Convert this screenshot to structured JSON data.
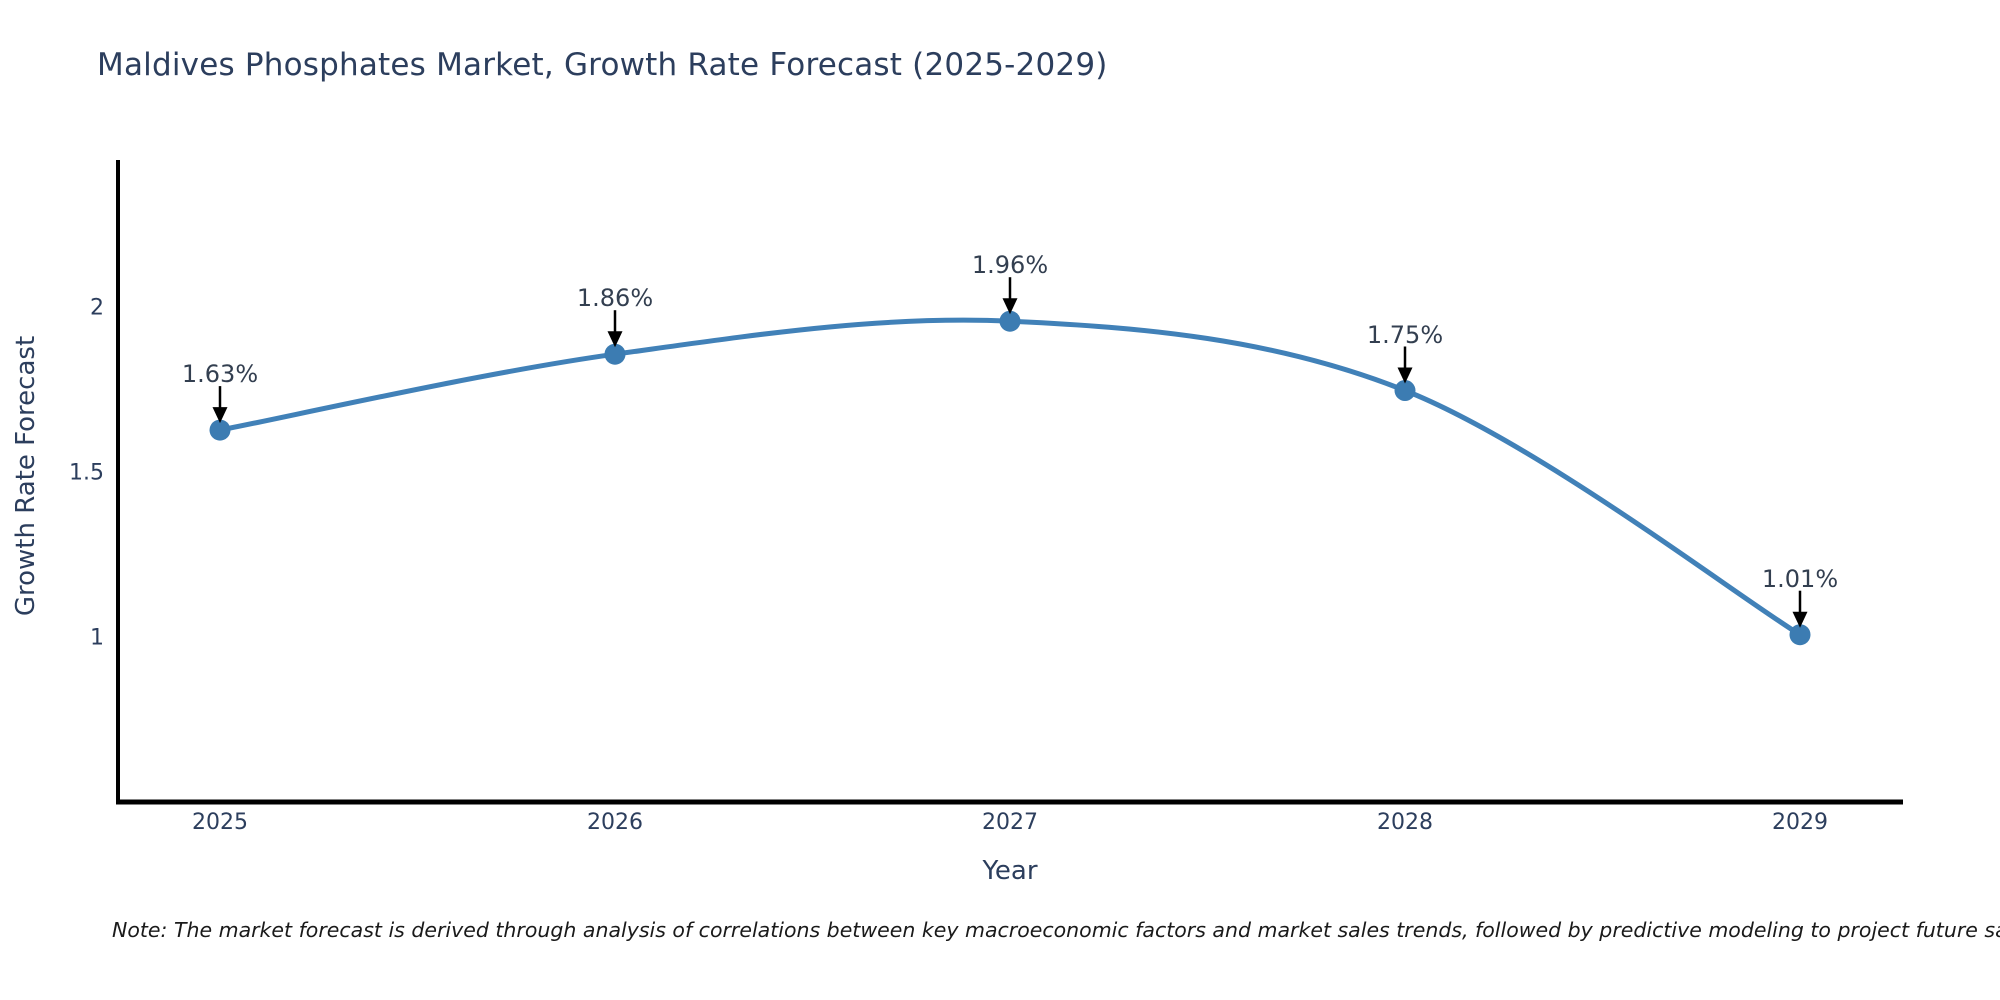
{
  "chart_data": {
    "type": "line",
    "title": "Maldives Phosphates Market, Growth Rate Forecast (2025-2029)",
    "xlabel": "Year",
    "ylabel": "Growth Rate Forecast",
    "categories": [
      "2025",
      "2026",
      "2027",
      "2028",
      "2029"
    ],
    "x": [
      2025,
      2026,
      2027,
      2028,
      2029
    ],
    "values": [
      1.63,
      1.86,
      1.96,
      1.75,
      1.01
    ],
    "point_labels": [
      "1.63%",
      "1.86%",
      "1.96%",
      "1.75%",
      "1.01%"
    ],
    "yticks": [
      {
        "value": 1,
        "label": "1"
      },
      {
        "value": 1.5,
        "label": "1.5"
      },
      {
        "value": 2,
        "label": "2"
      }
    ],
    "ylim": [
      0.5,
      2.45
    ],
    "grid": false,
    "legend": "none",
    "line_shape": "spline",
    "marker": "circle",
    "annotations": "value labels above each point with downward black arrows"
  },
  "note": "Note: The market forecast is derived through analysis of correlations between key macroeconomic factors and market sales trends, followed by predictive modeling to project future sales",
  "colors": {
    "line": "#4181b8",
    "marker": "#3c7cb2",
    "axis": "#000000",
    "arrow": "#000000",
    "title_text": "#2c3e5d",
    "tick_text": "#2c3e5d",
    "annotation_text": "#333f50",
    "note_text": "#1a1a1a",
    "background": "#ffffff"
  }
}
